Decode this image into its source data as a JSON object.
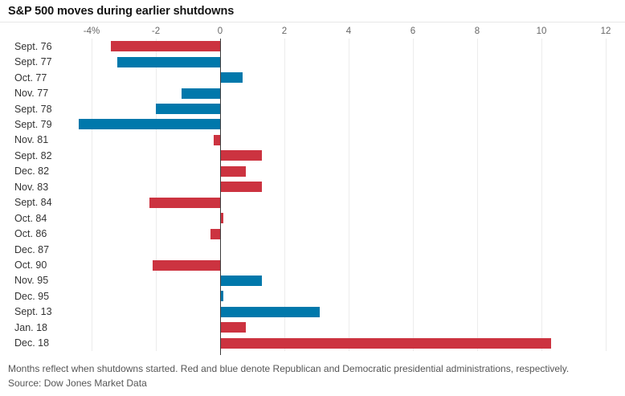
{
  "title": "S&P 500 moves during earlier shutdowns",
  "footnote": "Months reflect when shutdowns started. Red and blue denote Republican and Democratic presidential administrations, respectively.",
  "source": "Source: Dow Jones Market Data",
  "colors": {
    "republican_red": "#cc3340",
    "democrat_blue": "#0078ab",
    "gridline": "#ececec",
    "zero_line": "#3d3d3d",
    "tick_label": "#666666",
    "category_label": "#333333",
    "title_text": "#141414",
    "note_text": "#565656"
  },
  "chart_data": {
    "type": "bar",
    "orientation": "horizontal",
    "title": "S&P 500 moves during earlier shutdowns",
    "xlabel": "",
    "ylabel": "",
    "unit": "percent",
    "xlim": [
      -4.65,
      12.6
    ],
    "grid": true,
    "zero_line": true,
    "x_ticks": [
      "-4%",
      "-2",
      "0",
      "2",
      "4",
      "6",
      "8",
      "10",
      "12"
    ],
    "x_tick_values": [
      -4,
      -2,
      0,
      2,
      4,
      6,
      8,
      10,
      12
    ],
    "categories": [
      "Sept. 76",
      "Sept. 77",
      "Oct. 77",
      "Nov. 77",
      "Sept. 78",
      "Sept. 79",
      "Nov. 81",
      "Sept. 82",
      "Dec. 82",
      "Nov. 83",
      "Sept. 84",
      "Oct. 84",
      "Oct. 86",
      "Dec. 87",
      "Oct. 90",
      "Nov. 95",
      "Dec. 95",
      "Sept. 13",
      "Jan. 18",
      "Dec. 18"
    ],
    "values": [
      -3.4,
      -3.2,
      0.7,
      -1.2,
      -2.0,
      -4.4,
      -0.2,
      1.3,
      0.8,
      1.3,
      -2.2,
      0.1,
      -0.3,
      0.0,
      -2.1,
      1.3,
      0.1,
      3.1,
      0.8,
      10.3
    ],
    "party": [
      "R",
      "D",
      "D",
      "D",
      "D",
      "D",
      "R",
      "R",
      "R",
      "R",
      "R",
      "R",
      "R",
      "R",
      "R",
      "D",
      "D",
      "D",
      "R",
      "R"
    ]
  }
}
